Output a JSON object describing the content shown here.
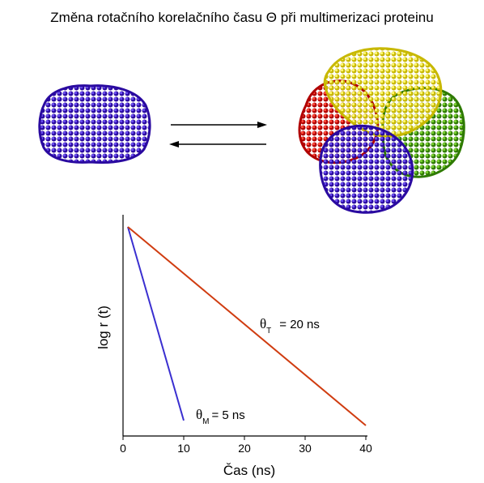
{
  "title": "Změna rotačního korelačního času Θ při multimerizaci proteinu",
  "colors": {
    "monomer": "#3a14c8",
    "tetramer_red": "#e01010",
    "tetramer_yellow": "#f2e81a",
    "tetramer_green": "#4aa010",
    "tetramer_blue": "#3a14c8",
    "line_monomer": "#3a2fd0",
    "line_tetramer": "#d03c10"
  },
  "icons": {
    "monomer": "protein-monomer-sphere",
    "tetramer": "protein-tetramer-cluster",
    "forward_arrow": "arrow-right-icon",
    "backward_arrow": "arrow-left-icon"
  },
  "chart_data": {
    "type": "line",
    "xlabel": "Čas (ns)",
    "ylabel": "log r (t)",
    "xlim": [
      0,
      40
    ],
    "x_ticks": [
      0,
      10,
      20,
      30,
      40
    ],
    "y_ticks": [],
    "grid": false,
    "series": [
      {
        "name": "θM = 5 ns",
        "x": [
          0.8,
          10
        ],
        "y": [
          1.0,
          0.025
        ]
      },
      {
        "name": "θT = 20 ns",
        "x": [
          0.8,
          40
        ],
        "y": [
          1.0,
          0.0
        ]
      }
    ],
    "annotations": {
      "monomer": {
        "symbol": "θ",
        "subscript": "M",
        "value": "= 5 ns"
      },
      "tetramer": {
        "symbol": "θ",
        "subscript": "T",
        "value": "= 20 ns"
      }
    }
  }
}
